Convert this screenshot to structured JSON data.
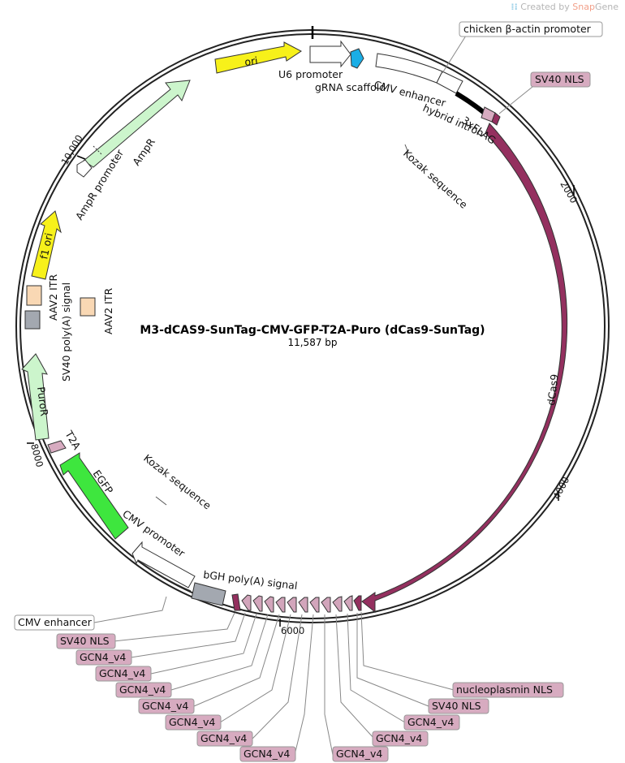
{
  "credit": {
    "prefix": "Created by",
    "brand_a": "Snap",
    "brand_b": "Gene"
  },
  "plasmid": {
    "name": "M3-dCAS9-SunTag-CMV-GFP-T2A-Puro (dCas9-SunTag)",
    "length": "11,587 bp"
  },
  "colors": {
    "ori": "#f7f11a",
    "promoter": "#ffffff",
    "ampr": "#ccf5cc",
    "dcas9": "#94305f",
    "nls": "#d7abc0",
    "egfp": "#3ee63e",
    "polyA": "#a3a8b0",
    "itr": "#f9d8b4",
    "gcn4": "#d2a5bb",
    "black": "#000000"
  },
  "ticks": [
    "2000",
    "4000",
    "6000",
    "8000",
    "10,000"
  ],
  "features": {
    "ori": "ori",
    "u6": "U6 promoter",
    "grna": "gRNA scaffold",
    "cmv_enh_top": "CMV enhancer",
    "hybrid": "hybrid intron",
    "flag": "3xFLAG",
    "kozak_top": "Kozak sequence",
    "dcas9": "dCas9",
    "bgh": "bGH poly(A) signal",
    "cmv_prom": "CMV promoter",
    "kozak_bottom": "Kozak sequence",
    "egfp": "EGFP",
    "t2a": "T2A",
    "puror": "PuroR",
    "sv40pa": "SV40 poly(A) signal",
    "aav2_itr_left": "AAV2 ITR",
    "aav2_itr_inner": "AAV2 ITR",
    "f1ori": "f1 ori",
    "ampr_prom": "AmpR promoter",
    "ampr": "AmpR"
  },
  "callouts": {
    "chicken": "chicken β-actin promoter",
    "sv40nls_top": "SV40 NLS",
    "cmv_enh_bottom": "CMV enhancer",
    "bottom_left": [
      "SV40 NLS",
      "GCN4_v4",
      "GCN4_v4",
      "GCN4_v4",
      "GCN4_v4",
      "GCN4_v4",
      "GCN4_v4",
      "GCN4_v4"
    ],
    "bottom_right": [
      "GCN4_v4",
      "GCN4_v4",
      "GCN4_v4",
      "SV40 NLS",
      "nucleoplasmin NLS"
    ]
  }
}
